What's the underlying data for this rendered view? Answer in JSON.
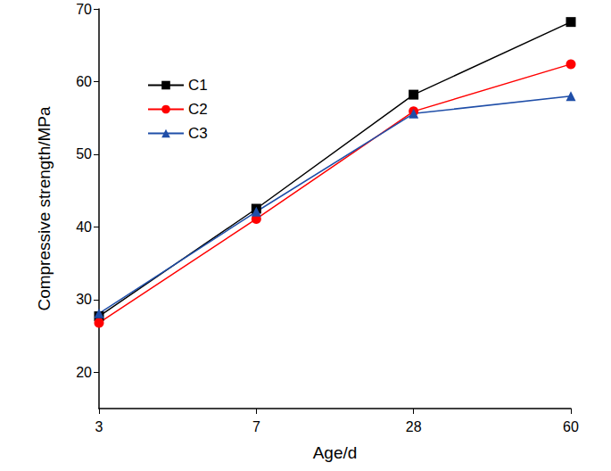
{
  "chart_data": {
    "type": "line",
    "x_label": "Age/d",
    "y_label": "Compressive strength/MPa",
    "categories": [
      "3",
      "7",
      "28",
      "60"
    ],
    "series": [
      {
        "name": "C1",
        "color": "#000000",
        "marker": "square",
        "line_style": "solid",
        "values": [
          27.7,
          42.5,
          58.2,
          68.2
        ]
      },
      {
        "name": "C2",
        "color": "#ff0000",
        "marker": "circle",
        "line_style": "solid",
        "values": [
          26.8,
          41.1,
          55.9,
          62.4
        ]
      },
      {
        "name": "C3",
        "color": "#1f4ea8",
        "marker": "triangle",
        "line_style": "solid",
        "values": [
          28.1,
          42.1,
          55.6,
          58.0
        ]
      }
    ],
    "ylim": [
      15,
      70
    ],
    "yticks": [
      20,
      30,
      40,
      50,
      60,
      70
    ],
    "grid": false,
    "legend": "upper left"
  }
}
